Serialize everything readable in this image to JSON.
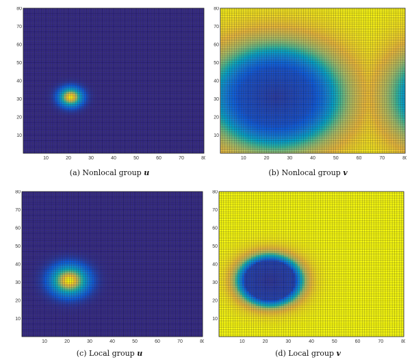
{
  "chart_data": [
    {
      "type": "heatmap",
      "caption": "(a)  Nonlocal group",
      "caption_var": "u",
      "xlim": [
        0,
        80
      ],
      "ylim": [
        0,
        80
      ],
      "xticks": [
        10,
        20,
        30,
        40,
        50,
        60,
        70,
        80
      ],
      "yticks": [
        10,
        20,
        30,
        40,
        50,
        60,
        70,
        80
      ],
      "grid": true,
      "colormap": "parula",
      "field": {
        "kind": "spot",
        "center": [
          21,
          31
        ],
        "radius": 5
      }
    },
    {
      "type": "heatmap",
      "caption": "(b)  Nonlocal group",
      "caption_var": "v",
      "xlim": [
        0,
        80
      ],
      "ylim": [
        0,
        80
      ],
      "xticks": [
        10,
        20,
        30,
        40,
        50,
        60,
        70,
        80
      ],
      "yticks": [
        10,
        20,
        30,
        40,
        50,
        60,
        70,
        80
      ],
      "grid": true,
      "colormap": "parula",
      "field": {
        "kind": "depression",
        "center": [
          24,
          31
        ],
        "radius": 28,
        "periodic_x": 80
      }
    },
    {
      "type": "heatmap",
      "caption": "(c)  Local group",
      "caption_var": "u",
      "xlim": [
        0,
        80
      ],
      "ylim": [
        0,
        80
      ],
      "xticks": [
        10,
        20,
        30,
        40,
        50,
        60,
        70,
        80
      ],
      "yticks": [
        10,
        20,
        30,
        40,
        50,
        60,
        70,
        80
      ],
      "grid": true,
      "colormap": "parula",
      "field": {
        "kind": "spot",
        "center": [
          21,
          31
        ],
        "radius": 8
      }
    },
    {
      "type": "heatmap",
      "caption": "(d)  Local group",
      "caption_var": "v",
      "xlim": [
        0,
        80
      ],
      "ylim": [
        0,
        80
      ],
      "xticks": [
        10,
        20,
        30,
        40,
        50,
        60,
        70,
        80
      ],
      "yticks": [
        10,
        20,
        30,
        40,
        50,
        60,
        70,
        80
      ],
      "grid": true,
      "colormap": "parula",
      "field": {
        "kind": "ring",
        "center": [
          22,
          31
        ],
        "radius": 13
      }
    }
  ]
}
